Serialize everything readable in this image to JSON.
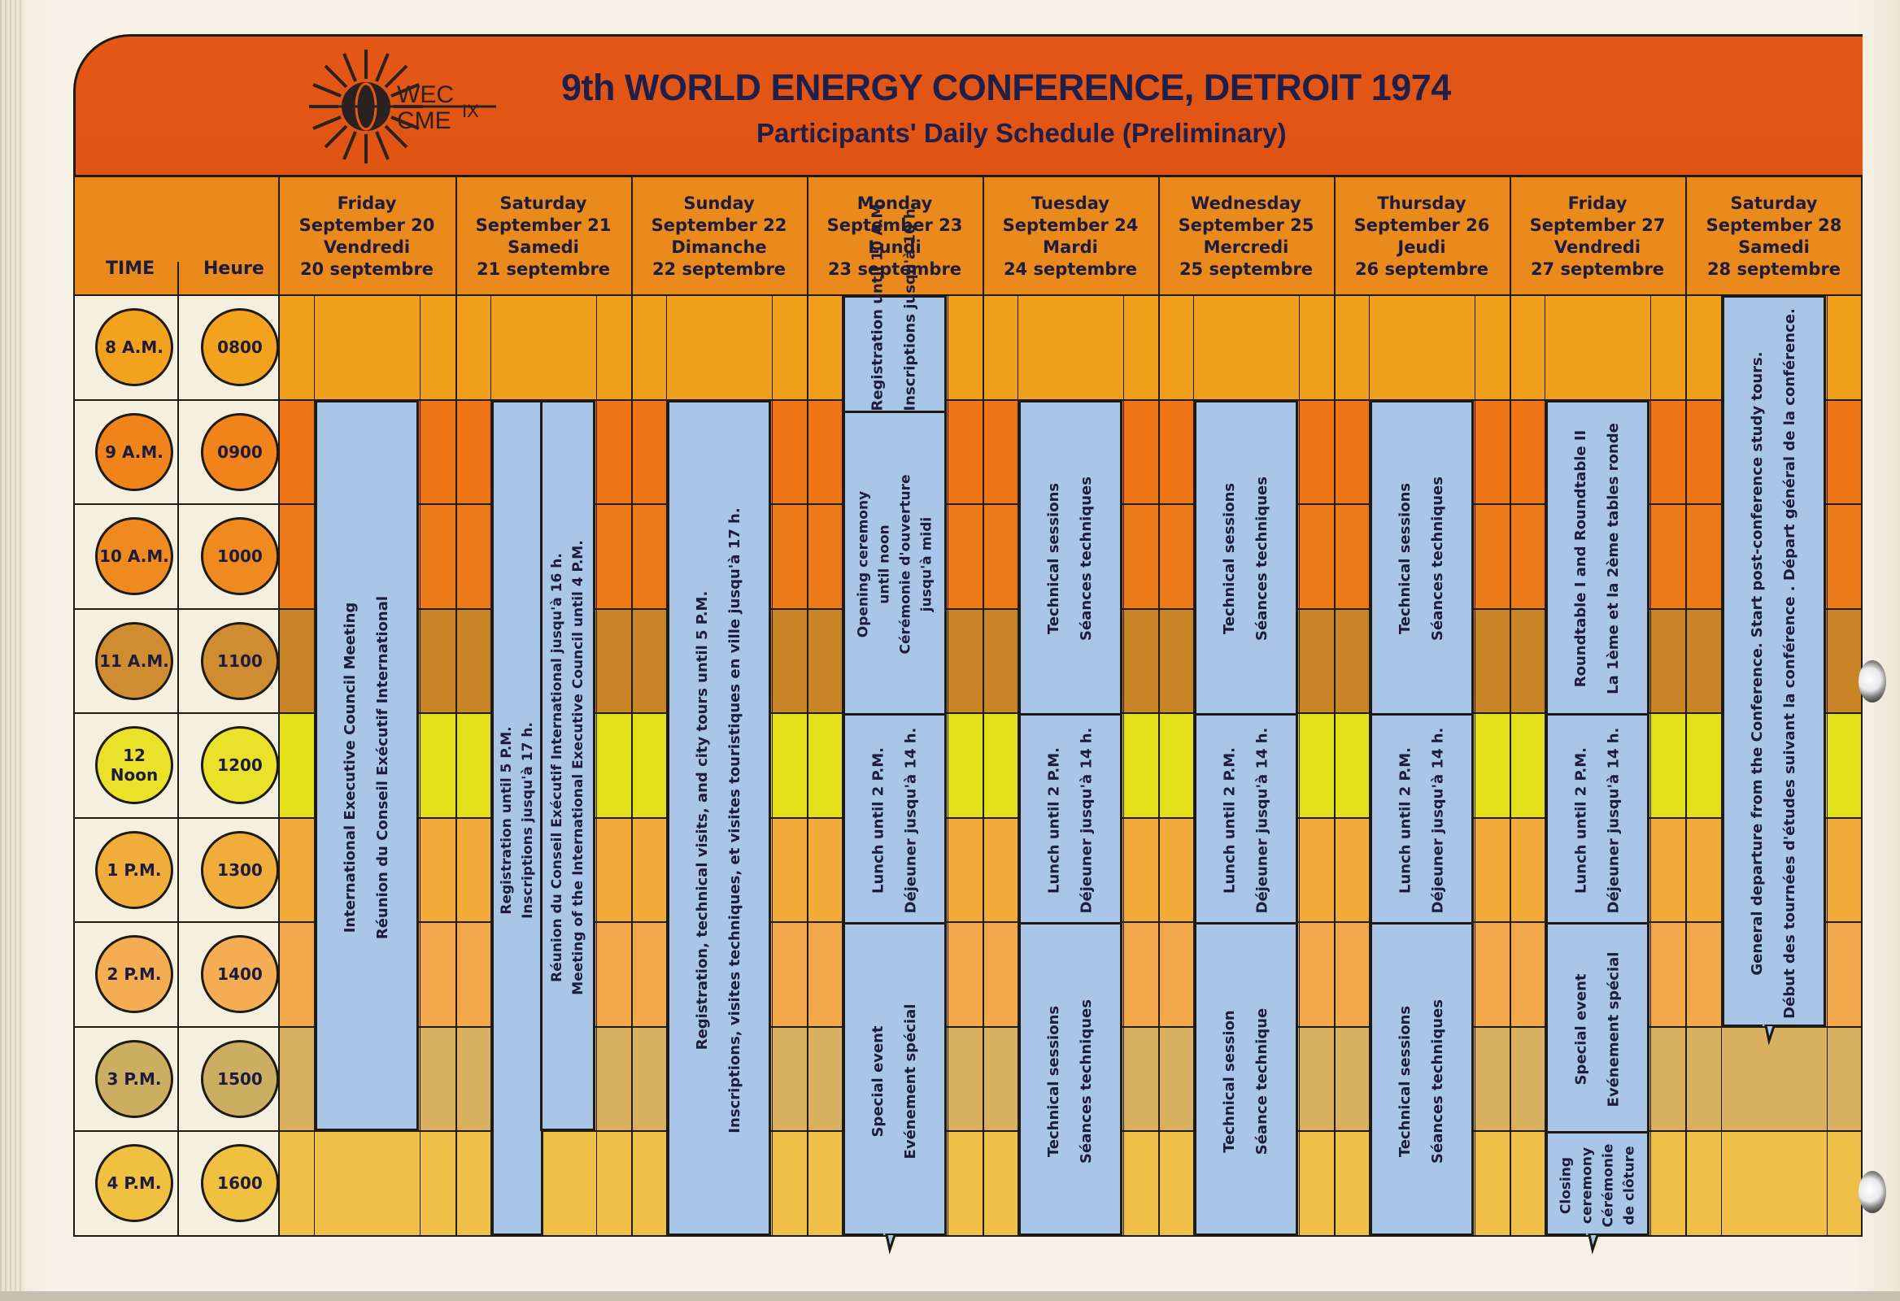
{
  "header": {
    "logo_top": "WEC",
    "logo_bottom": "CME",
    "logo_roman": "IX",
    "title": "9th WORLD ENERGY CONFERENCE, DETROIT 1974",
    "subtitle": "Participants' Daily Schedule (Preliminary)"
  },
  "columns": {
    "time_label": "TIME",
    "heure_label": "Heure"
  },
  "days": [
    {
      "en_day": "Friday",
      "en_date": "September 20",
      "fr_day": "Vendredi",
      "fr_date": "20 septembre"
    },
    {
      "en_day": "Saturday",
      "en_date": "September 21",
      "fr_day": "Samedi",
      "fr_date": "21 septembre"
    },
    {
      "en_day": "Sunday",
      "en_date": "September 22",
      "fr_day": "Dimanche",
      "fr_date": "22 septembre"
    },
    {
      "en_day": "Monday",
      "en_date": "September 23",
      "fr_day": "Lundi",
      "fr_date": "23 septembre"
    },
    {
      "en_day": "Tuesday",
      "en_date": "September 24",
      "fr_day": "Mardi",
      "fr_date": "24 septembre"
    },
    {
      "en_day": "Wednesday",
      "en_date": "September 25",
      "fr_day": "Mercredi",
      "fr_date": "25 septembre"
    },
    {
      "en_day": "Thursday",
      "en_date": "September 26",
      "fr_day": "Jeudi",
      "fr_date": "26 septembre"
    },
    {
      "en_day": "Friday",
      "en_date": "September 27",
      "fr_day": "Vendredi",
      "fr_date": "27 septembre"
    },
    {
      "en_day": "Saturday",
      "en_date": "September 28",
      "fr_day": "Samedi",
      "fr_date": "28 septembre"
    }
  ],
  "hours": [
    {
      "time": "8 A.M.",
      "heure": "0800",
      "band": "#f0a01a",
      "circle": "#f3a21d"
    },
    {
      "time": "9 A.M.",
      "heure": "0900",
      "band": "#ee7414",
      "circle": "#f0841b"
    },
    {
      "time": "10 A.M.",
      "heure": "1000",
      "band": "#ec7a18",
      "circle": "#ee8a20"
    },
    {
      "time": "11 A.M.",
      "heure": "1100",
      "band": "#c98428",
      "circle": "#d08c30"
    },
    {
      "time": "12 Noon",
      "heure": "1200",
      "band": "#e3df19",
      "circle": "#eae22a"
    },
    {
      "time": "1 P.M.",
      "heure": "1300",
      "band": "#f2aa38",
      "circle": "#f1ad3c"
    },
    {
      "time": "2 P.M.",
      "heure": "1400",
      "band": "#f3a84a",
      "circle": "#f4ad52"
    },
    {
      "time": "3 P.M.",
      "heure": "1500",
      "band": "#d8b060",
      "circle": "#ccae62"
    },
    {
      "time": "4 P.M.",
      "heure": "1600",
      "band": "#efc048",
      "circle": "#f0c040"
    }
  ],
  "events": {
    "fri20": {
      "l1": "International Executive Council Meeting",
      "l2": "Réunion du Conseil Exécutif International"
    },
    "sat21_reg": {
      "l1": "Registration until 5 P.M.",
      "l2": "Inscriptions jusqu'à 17 h."
    },
    "sat21_council": {
      "l1": "Réunion du Conseil Exécutif International jusqu'à 16 h.",
      "l2": "Meeting of the International Executive Council until 4 P.M."
    },
    "sun22": {
      "l1": "Registration, technical visits, and city tours until 5 P.M.",
      "l2": "Inscriptions, visites techniques, et visites touristiques en ville jusqu'à 17 h."
    },
    "mon_reg": {
      "l1": "Registration until 10 A.M.",
      "l2": "Inscriptions jusqu'à 10 h."
    },
    "mon_open": {
      "l1": "Opening ceremony",
      "l2": "until noon",
      "l3": "Cérémonie d'ouverture",
      "l4": "jusqu'à midi"
    },
    "lunch": {
      "l1": "Lunch until 2 P.M.",
      "l2": "Déjeuner jusqu'à 14 h."
    },
    "special": {
      "l1": "Special event",
      "l2": "Evénement spécial"
    },
    "tech": {
      "l1": "Technical sessions",
      "l2": "Séances techniques"
    },
    "tech_single": {
      "l1": "Technical session",
      "l2": "Séance technique"
    },
    "roundtable": {
      "l1": "Roundtable I and Roundtable II",
      "l2": "La 1ème et la 2ème tables ronde"
    },
    "closing": {
      "l1": "Closing",
      "l2": "ceremony",
      "l3": "Cérémonie",
      "l4": "de clôture"
    },
    "sat28": {
      "l1": "General departure from the Conference. Start post-conference study tours.",
      "l2": "Début des tournées d'études suivant la conférence .     Départ général de la conférence."
    }
  },
  "colors": {
    "banner": "#e45716",
    "header_row": "#ea8a1c",
    "block": "#a9c6e8",
    "ink": "#1d1c3c"
  }
}
